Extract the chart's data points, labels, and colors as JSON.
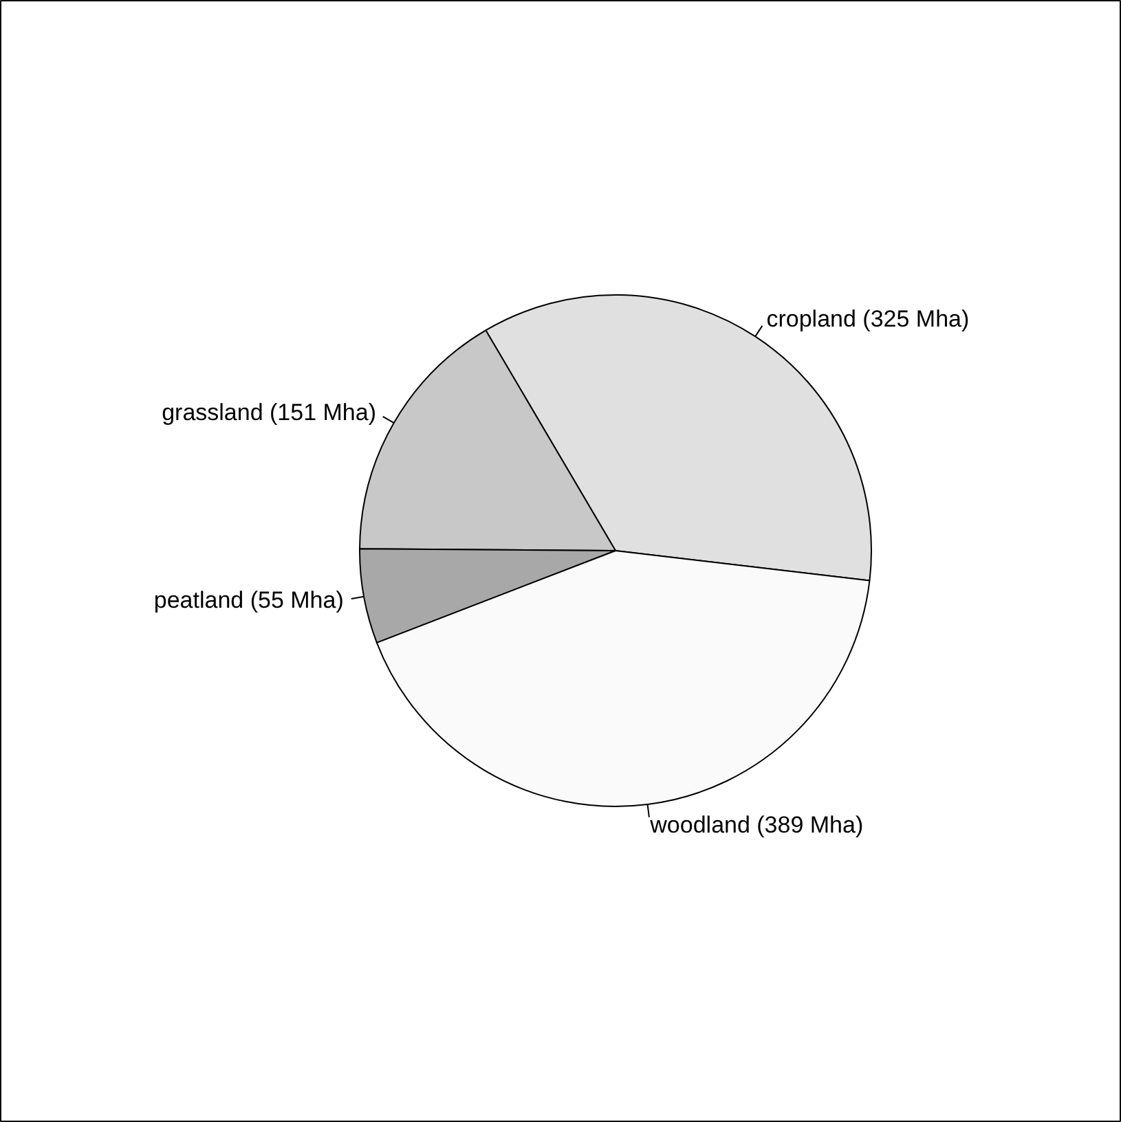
{
  "chart_data": {
    "type": "pie",
    "categories": [
      "cropland (325 Mha)",
      "grassland (151 Mha)",
      "peatland (55 Mha)",
      "woodland (389 Mha)"
    ],
    "values": [
      325,
      151,
      55,
      389
    ],
    "colors": [
      "#e0e0e0",
      "#c8c8c8",
      "#a8a8a8",
      "#fafafa"
    ]
  }
}
